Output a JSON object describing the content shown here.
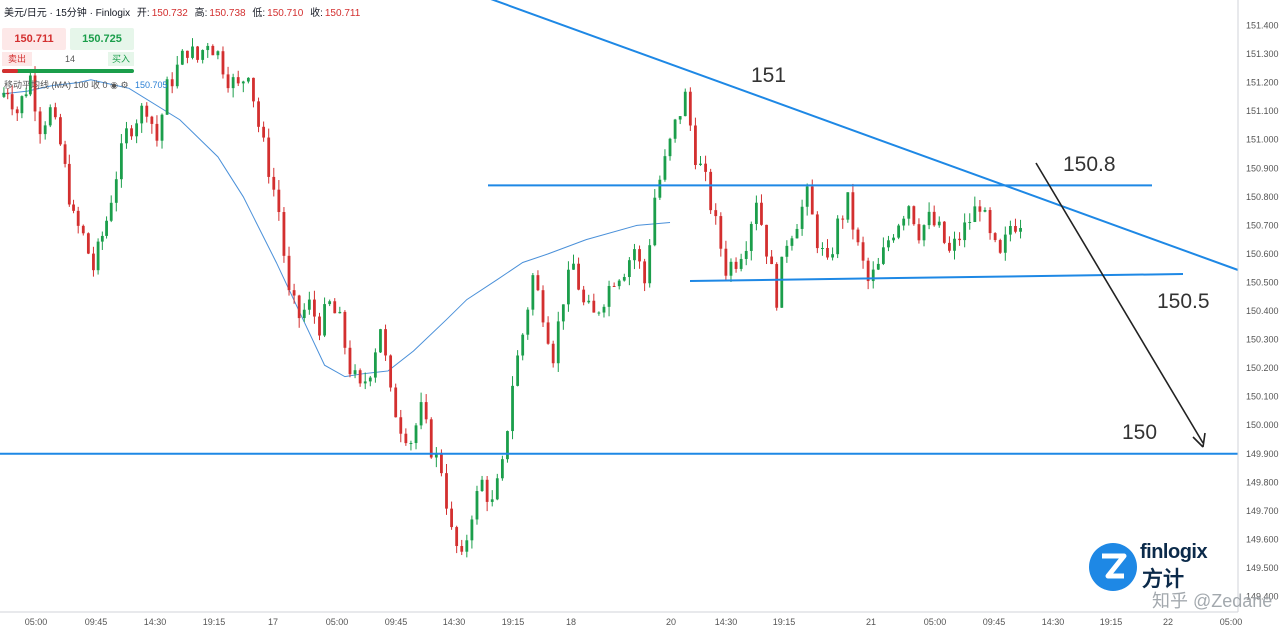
{
  "header": {
    "symbol": "美元/日元 · 15分钟 · Finlogix",
    "open_label": "开:",
    "open": "150.732",
    "high_label": "高:",
    "high": "150.738",
    "low_label": "低:",
    "low": "150.710",
    "close_label": "收:",
    "close": "150.711"
  },
  "trade_panel": {
    "sell_price": "150.711",
    "buy_price": "150.725",
    "sell_label": "卖出",
    "quantity": "14",
    "buy_label": "买入"
  },
  "indicator": {
    "label": "移动平均线 (MA)",
    "params": "100 收 0",
    "value": "150.705"
  },
  "brand": {
    "name_en": "finlogix",
    "name_zh": "方计",
    "watermark": "知乎 @Zedane"
  },
  "colors": {
    "up": "#1b9e4b",
    "down": "#d32f2f",
    "trendline": "#1e88e5",
    "ma": "#4a90d9",
    "arrow": "#222222",
    "axis_text": "#555555"
  },
  "chart_data": {
    "type": "candlestick",
    "ylim": [
      149.4,
      151.4
    ],
    "y_ticks": [
      "151.400",
      "151.300",
      "151.200",
      "151.100",
      "151.000",
      "150.900",
      "150.800",
      "150.700",
      "150.600",
      "150.500",
      "150.400",
      "150.300",
      "150.200",
      "150.100",
      "150.000",
      "149.900",
      "149.800",
      "149.700",
      "149.600",
      "149.500",
      "149.400"
    ],
    "x_ticks": [
      "05:00",
      "09:45",
      "14:30",
      "19:15",
      "17",
      "05:00",
      "09:45",
      "14:30",
      "19:15",
      "18",
      "20",
      "14:30",
      "19:15",
      "21",
      "05:00",
      "09:45",
      "14:30",
      "19:15",
      "22",
      "05:00"
    ],
    "annotations": [
      {
        "text": "151"
      },
      {
        "text": "150.8"
      },
      {
        "text": "150.5"
      },
      {
        "text": "150"
      }
    ],
    "levels": {
      "descending_trendline": "upper",
      "resistance": 150.84,
      "support": 150.5,
      "horizontal": 149.9
    },
    "ma_series": [
      {
        "x": 0.0,
        "y": 151.16
      },
      {
        "x": 0.1,
        "y": 151.17
      },
      {
        "x": 0.2,
        "y": 151.19
      },
      {
        "x": 0.3,
        "y": 151.2
      },
      {
        "x": 0.35,
        "y": 151.21
      },
      {
        "x": 0.5,
        "y": 151.18
      },
      {
        "x": 0.7,
        "y": 151.07
      },
      {
        "x": 0.85,
        "y": 150.94
      },
      {
        "x": 0.95,
        "y": 150.8
      },
      {
        "x": 1.08,
        "y": 150.57
      },
      {
        "x": 1.18,
        "y": 150.38
      },
      {
        "x": 1.27,
        "y": 150.21
      },
      {
        "x": 1.35,
        "y": 150.17
      },
      {
        "x": 1.42,
        "y": 150.18
      },
      {
        "x": 1.52,
        "y": 150.19
      },
      {
        "x": 1.62,
        "y": 150.26
      },
      {
        "x": 1.75,
        "y": 150.37
      },
      {
        "x": 1.83,
        "y": 150.44
      },
      {
        "x": 1.95,
        "y": 150.51
      },
      {
        "x": 2.05,
        "y": 150.57
      },
      {
        "x": 2.15,
        "y": 150.6
      },
      {
        "x": 2.3,
        "y": 150.65
      },
      {
        "x": 2.5,
        "y": 150.7
      },
      {
        "x": 2.63,
        "y": 150.71
      }
    ],
    "ohlc_path": [
      [
        0.0,
        151.15
      ],
      [
        0.03,
        151.18
      ],
      [
        0.07,
        151.1
      ],
      [
        0.12,
        151.22
      ],
      [
        0.16,
        151.05
      ],
      [
        0.2,
        151.1
      ],
      [
        0.24,
        150.98
      ],
      [
        0.29,
        150.72
      ],
      [
        0.33,
        150.66
      ],
      [
        0.37,
        150.55
      ],
      [
        0.42,
        150.72
      ],
      [
        0.46,
        150.88
      ],
      [
        0.5,
        151.02
      ],
      [
        0.54,
        151.08
      ],
      [
        0.58,
        151.12
      ],
      [
        0.62,
        151.0
      ],
      [
        0.66,
        151.18
      ],
      [
        0.7,
        151.25
      ],
      [
        0.74,
        151.32
      ],
      [
        0.78,
        151.28
      ],
      [
        0.82,
        151.35
      ],
      [
        0.86,
        151.3
      ],
      [
        0.9,
        151.22
      ],
      [
        0.94,
        151.18
      ],
      [
        0.98,
        151.25
      ],
      [
        1.02,
        151.05
      ],
      [
        1.06,
        150.9
      ],
      [
        1.1,
        150.75
      ],
      [
        1.14,
        150.45
      ],
      [
        1.18,
        150.38
      ],
      [
        1.22,
        150.42
      ],
      [
        1.26,
        150.35
      ],
      [
        1.3,
        150.42
      ],
      [
        1.34,
        150.36
      ],
      [
        1.38,
        150.2
      ],
      [
        1.42,
        150.12
      ],
      [
        1.46,
        150.2
      ],
      [
        1.5,
        150.35
      ],
      [
        1.54,
        150.1
      ],
      [
        1.58,
        150.0
      ],
      [
        1.62,
        149.95
      ],
      [
        1.66,
        150.05
      ],
      [
        1.7,
        149.92
      ],
      [
        1.74,
        149.85
      ],
      [
        1.78,
        149.62
      ],
      [
        1.82,
        149.52
      ],
      [
        1.86,
        149.7
      ],
      [
        1.9,
        149.8
      ],
      [
        1.94,
        149.72
      ],
      [
        1.98,
        149.85
      ],
      [
        2.02,
        150.15
      ],
      [
        2.06,
        150.32
      ],
      [
        2.1,
        150.52
      ],
      [
        2.14,
        150.4
      ],
      [
        2.18,
        150.25
      ],
      [
        2.22,
        150.45
      ],
      [
        2.26,
        150.56
      ],
      [
        2.3,
        150.42
      ],
      [
        2.34,
        150.38
      ],
      [
        2.38,
        150.45
      ],
      [
        2.42,
        150.52
      ],
      [
        2.46,
        150.55
      ],
      [
        2.5,
        150.62
      ],
      [
        2.54,
        150.5
      ],
      [
        2.58,
        150.8
      ],
      [
        2.62,
        150.92
      ],
      [
        2.66,
        151.05
      ],
      [
        2.7,
        151.15
      ],
      [
        2.74,
        150.95
      ],
      [
        2.78,
        150.85
      ],
      [
        2.82,
        150.7
      ],
      [
        2.86,
        150.55
      ],
      [
        2.9,
        150.58
      ],
      [
        2.94,
        150.65
      ],
      [
        2.98,
        150.8
      ],
      [
        3.02,
        150.62
      ],
      [
        3.06,
        150.45
      ],
      [
        3.1,
        150.65
      ],
      [
        3.14,
        150.72
      ],
      [
        3.18,
        150.8
      ],
      [
        3.22,
        150.65
      ],
      [
        3.26,
        150.55
      ],
      [
        3.3,
        150.7
      ],
      [
        3.34,
        150.78
      ],
      [
        3.38,
        150.62
      ],
      [
        3.42,
        150.5
      ],
      [
        3.46,
        150.55
      ],
      [
        3.5,
        150.65
      ],
      [
        3.54,
        150.72
      ],
      [
        3.58,
        150.78
      ],
      [
        3.62,
        150.68
      ],
      [
        3.66,
        150.72
      ],
      [
        3.7,
        150.68
      ],
      [
        3.74,
        150.6
      ],
      [
        3.78,
        150.66
      ],
      [
        3.82,
        150.72
      ],
      [
        3.86,
        150.78
      ],
      [
        3.9,
        150.65
      ],
      [
        3.94,
        150.58
      ],
      [
        3.98,
        150.7
      ],
      [
        4.02,
        150.72
      ]
    ]
  }
}
